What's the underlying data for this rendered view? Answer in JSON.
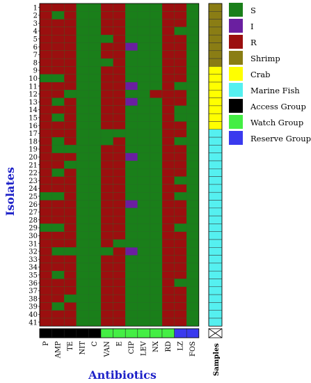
{
  "chart_data": {
    "type": "heatmap",
    "xlabel": "Antibiotics",
    "ylabel": "Isolates",
    "samples_label": "Samples",
    "columns": [
      "P",
      "AMP",
      "TE",
      "NIT",
      "C",
      "VAN",
      "E",
      "CIP",
      "LEV",
      "NX",
      "RD",
      "LZ",
      "FOS"
    ],
    "rows": [
      "1",
      "2",
      "3",
      "4",
      "5",
      "6",
      "7",
      "8",
      "9",
      "10",
      "11",
      "12",
      "13",
      "14",
      "15",
      "16",
      "17",
      "18",
      "19",
      "20",
      "21",
      "22",
      "23",
      "24",
      "25",
      "26",
      "27",
      "28",
      "29",
      "30",
      "31",
      "32",
      "33",
      "34",
      "35",
      "36",
      "37",
      "38",
      "39",
      "40",
      "41"
    ],
    "status_colors": {
      "S": "#1a7f1a",
      "I": "#6a1fa0",
      "R": "#9b0f0f"
    },
    "matrix": [
      "RRRSSRRSSSRRS",
      "RSRSSRRSSSRRS",
      "RRRSSRRSSSRRS",
      "RRRSSRRSSSRSS",
      "RRRSSSRSSSRRS",
      "RRRSSRRISSRRS",
      "RRRSSRRSSSRRS",
      "RRRSSSRSSSRRS",
      "RRRSSRRSSSRRS",
      "SSRSSRRSSSRRS",
      "RRRSSRRISSRSS",
      "RRSSSRRSSRRRS",
      "RSRSSRRISSRRS",
      "RRRSSRRSSSRSS",
      "RSRSSRRSSSRSS",
      "RRRSSRRSSSRRS",
      "RRRSSSSSSSRRS",
      "RSRSSSRSSSRSS",
      "RSSSSRRSSSRRS",
      "RRRSSRRISSRRS",
      "RRSSSRRSSSRRS",
      "RSRSSRRSSSRRS",
      "RRRSSRRSSSRSS",
      "RRRSSRRSSSRRS",
      "SSRSSRRSSSRSS",
      "RRRSSRRISSRRS",
      "RRRSSRRSSSRRS",
      "RRRSSRRSSSRRS",
      "SSRSSRRSSSRSS",
      "RRRSSRRSSSRRS",
      "RRRSSRSSSSRRS",
      "RSSSSSRISSRRS",
      "RRRSSRRSSSRRS",
      "RRRSSRRSSSRRS",
      "RSRSSRRSSSRRS",
      "RRRSSRRSSSRSS",
      "RRRSSRRSSSRRS",
      "RRSSSRRSSSRRS",
      "RSRSSRRSSSRRS",
      "RRRSSRRSSSRRS",
      "RRRSSRRSSSRRS"
    ],
    "column_groups": [
      "Access Group",
      "Access Group",
      "Access Group",
      "Access Group",
      "Access Group",
      "Watch Group",
      "Watch Group",
      "Watch Group",
      "Watch Group",
      "Watch Group",
      "Watch Group",
      "Reserve Group",
      "Reserve Group"
    ],
    "samples": [
      "Shrimp",
      "Shrimp",
      "Shrimp",
      "Shrimp",
      "Shrimp",
      "Shrimp",
      "Shrimp",
      "Shrimp",
      "Crab",
      "Crab",
      "Crab",
      "Crab",
      "Crab",
      "Crab",
      "Crab",
      "Crab",
      "Marine Fish",
      "Marine Fish",
      "Marine Fish",
      "Marine Fish",
      "Marine Fish",
      "Marine Fish",
      "Marine Fish",
      "Marine Fish",
      "Marine Fish",
      "Marine Fish",
      "Marine Fish",
      "Marine Fish",
      "Marine Fish",
      "Marine Fish",
      "Marine Fish",
      "Marine Fish",
      "Marine Fish",
      "Marine Fish",
      "Marine Fish",
      "Marine Fish",
      "Marine Fish",
      "Marine Fish",
      "Marine Fish",
      "Marine Fish",
      "Marine Fish"
    ],
    "legend": [
      {
        "label": "S",
        "color": "#1a7f1a"
      },
      {
        "label": "I",
        "color": "#6a1fa0"
      },
      {
        "label": "R",
        "color": "#9b0f0f"
      },
      {
        "label": "Shrimp",
        "color": "#8a7d14"
      },
      {
        "label": "Crab",
        "color": "#ffff00"
      },
      {
        "label": "Marine Fish",
        "color": "#55f0f0"
      },
      {
        "label": "Access Group",
        "color": "#000000"
      },
      {
        "label": "Watch Group",
        "color": "#44ee44"
      },
      {
        "label": "Reserve Group",
        "color": "#3a3aee"
      }
    ]
  }
}
